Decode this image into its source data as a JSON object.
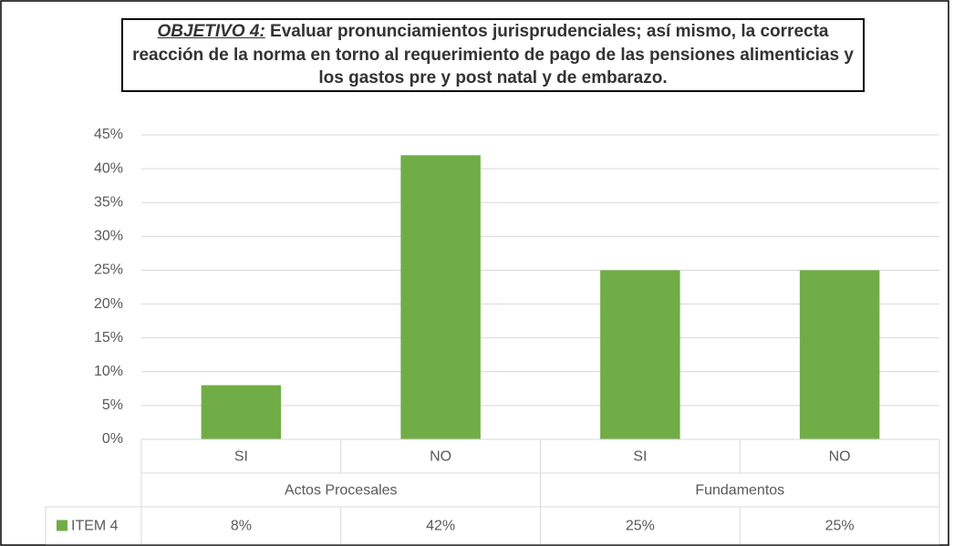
{
  "chart_data": {
    "type": "bar",
    "title": {
      "label": "OBJETIVO 4:",
      "text": "Evaluar pronunciamientos jurisprudenciales; así mismo, la correcta reacción de la norma en torno al requerimiento de pago de las pensiones alimenticias y los gastos pre y post natal y de embarazo."
    },
    "categories": [
      "SI",
      "NO",
      "SI",
      "NO"
    ],
    "groups": [
      "Actos Procesales",
      "Fundamentos"
    ],
    "series": [
      {
        "name": "ITEM 4",
        "color": "#70ad47",
        "values": [
          8,
          42,
          25,
          25
        ],
        "value_labels": [
          "8%",
          "42%",
          "25%",
          "25%"
        ]
      }
    ],
    "ylim": [
      0,
      45
    ],
    "yticks": [
      {
        "value": 0,
        "label": "0%"
      },
      {
        "value": 5,
        "label": "5%"
      },
      {
        "value": 10,
        "label": "10%"
      },
      {
        "value": 15,
        "label": "15%"
      },
      {
        "value": 20,
        "label": "20%"
      },
      {
        "value": 25,
        "label": "25%"
      },
      {
        "value": 30,
        "label": "30%"
      },
      {
        "value": 35,
        "label": "35%"
      },
      {
        "value": 40,
        "label": "40%"
      },
      {
        "value": 45,
        "label": "45%"
      }
    ],
    "grid": true
  }
}
